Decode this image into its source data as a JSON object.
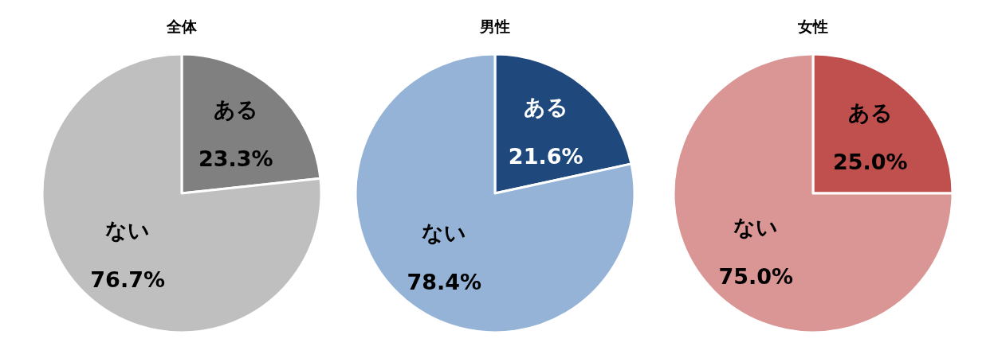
{
  "chart_data": [
    {
      "type": "pie",
      "title": "全体",
      "categories": [
        "ある",
        "ない"
      ],
      "values": [
        23.3,
        76.7
      ],
      "colors": [
        "#808080",
        "#bfbfbf"
      ],
      "value_labels": [
        "23.3%",
        "76.7%"
      ]
    },
    {
      "type": "pie",
      "title": "男性",
      "categories": [
        "ある",
        "ない"
      ],
      "values": [
        21.6,
        78.4
      ],
      "colors": [
        "#1f497d",
        "#95b3d7"
      ],
      "value_labels": [
        "21.6%",
        "78.4%"
      ]
    },
    {
      "type": "pie",
      "title": "女性",
      "categories": [
        "ある",
        "ない"
      ],
      "values": [
        25.0,
        75.0
      ],
      "colors": [
        "#c0504d",
        "#d99694"
      ],
      "value_labels": [
        "25.0%",
        "75.0%"
      ]
    }
  ]
}
